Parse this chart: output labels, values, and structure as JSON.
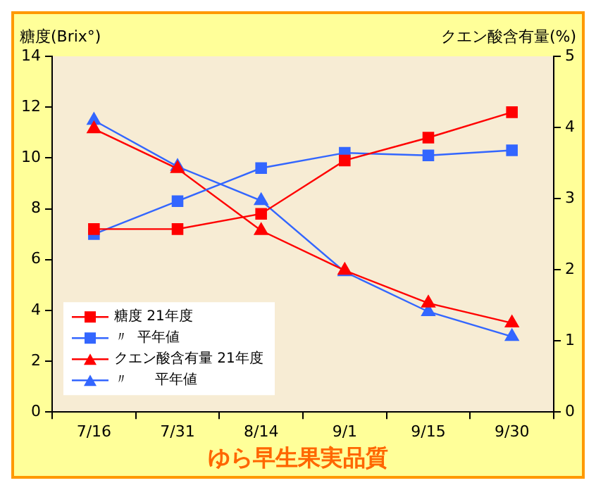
{
  "chart_data": {
    "type": "line",
    "title": "ゆら早生果実品質",
    "ylabel": "糖度(Brix°)",
    "y2label": "クエン酸含有量(%)",
    "categories": [
      "7/16",
      "7/31",
      "8/14",
      "9/1",
      "9/15",
      "9/30"
    ],
    "series": [
      {
        "name": "糖度 21年度",
        "color": "#ff0000",
        "marker": "square",
        "values": [
          7.2,
          7.2,
          7.8,
          9.9,
          10.8,
          11.8
        ]
      },
      {
        "name": "〃  平年値",
        "color": "#3366ff",
        "marker": "square",
        "values": [
          7.0,
          8.3,
          9.6,
          10.2,
          10.1,
          10.3
        ]
      },
      {
        "name": "クエン酸含有量 21年度",
        "color": "#ff0000",
        "marker": "triangle",
        "axis": "y2",
        "values": [
          3.98,
          3.42,
          2.55,
          1.99,
          1.53,
          1.25
        ]
      },
      {
        "name": "〃      平年値",
        "color": "#3366ff",
        "marker": "triangle",
        "axis": "y2",
        "values": [
          4.1,
          3.45,
          2.97,
          1.97,
          1.41,
          1.06
        ]
      }
    ],
    "ylim": [
      0,
      14
    ],
    "yticks": [
      0,
      2,
      4,
      6,
      8,
      10,
      12,
      14
    ],
    "y2lim": [
      0,
      5
    ],
    "y2ticks": [
      0,
      1,
      2,
      3,
      4,
      5
    ],
    "grid": false,
    "legend": "bottom left"
  }
}
